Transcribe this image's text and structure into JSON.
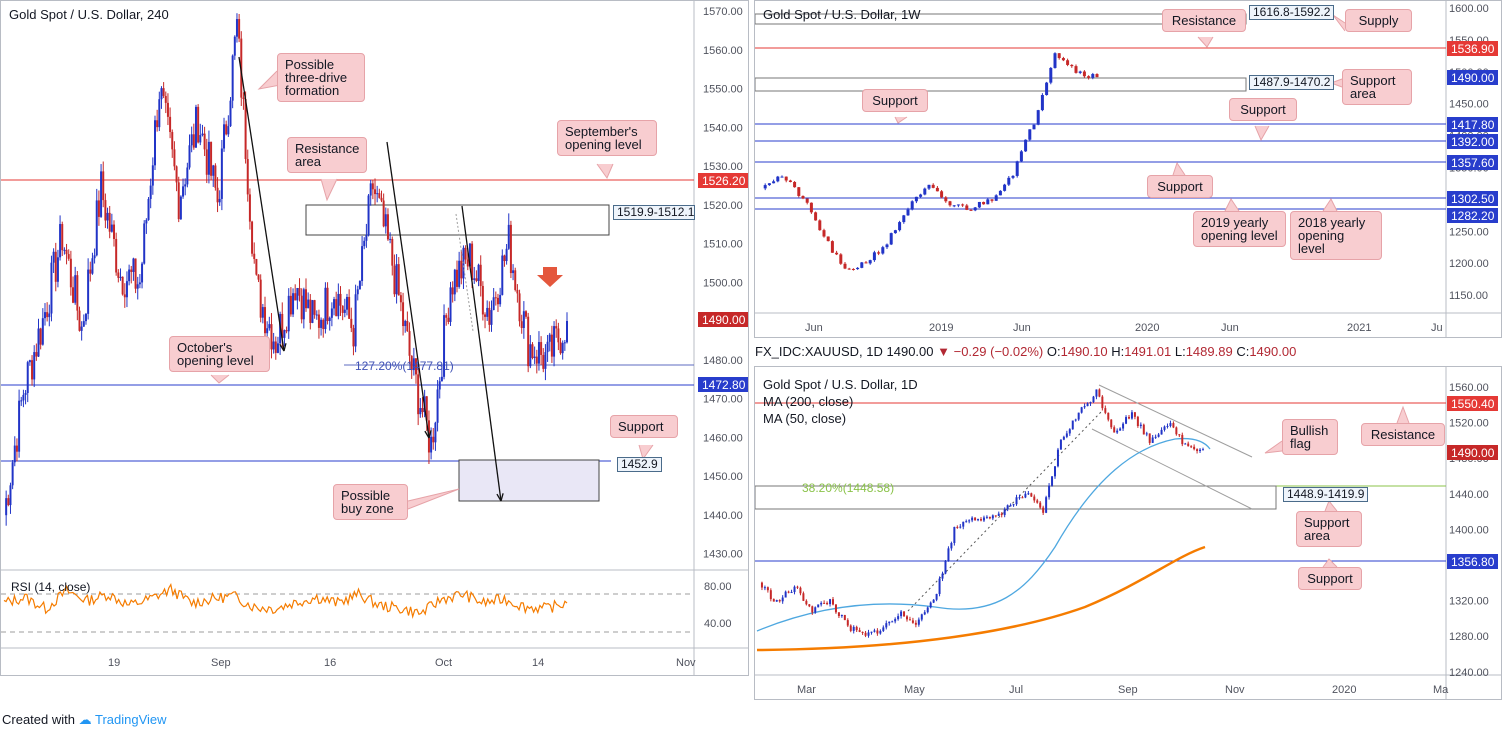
{
  "footer": {
    "created_with": "Created with",
    "brand": "TradingView"
  },
  "colors": {
    "up": "#2134c7",
    "down": "#c62828",
    "resistance": "#e53935",
    "support": "#283dcc",
    "rsi": "#f57c00",
    "ma200": "#f57c00",
    "ma50": "#4fa8e0",
    "fib": "#8bc34a"
  },
  "left_chart": {
    "title": "Gold Spot / U.S. Dollar, 240",
    "price_axis": [
      "1570.00",
      "1560.00",
      "1550.00",
      "1540.00",
      "1530.00",
      "1520.00",
      "1510.00",
      "1500.00",
      "1490.00",
      "1480.00",
      "1470.00",
      "1460.00",
      "1450.00",
      "1440.00",
      "1430.00"
    ],
    "time_axis": [
      "19",
      "Sep",
      "16",
      "Oct",
      "14",
      "Nov"
    ],
    "tags": {
      "resistance": "1526.20",
      "current": "1490.00",
      "support": "1472.80"
    },
    "zone_label": "1519.9-1512.1",
    "support_level": "1452.9",
    "fib_label": "127.20%(1477.81)",
    "callouts": {
      "three_drive": "Possible three-drive formation",
      "resistance_area": "Resistance area",
      "september": "September's opening level",
      "october": "October's opening level",
      "support": "Support",
      "buy_zone": "Possible buy zone"
    },
    "rsi": {
      "label": "RSI (14, close)",
      "axis": [
        "80.00",
        "40.00"
      ]
    }
  },
  "weekly_chart": {
    "title": "Gold Spot / U.S. Dollar, 1W",
    "price_axis": [
      "1600.00",
      "1550.00",
      "1500.00",
      "1450.00",
      "1400.00",
      "1350.00",
      "1300.00",
      "1250.00",
      "1200.00",
      "1150.00"
    ],
    "time_axis": [
      "Jun",
      "2019",
      "Jun",
      "2020",
      "Jun",
      "2021",
      "Ju"
    ],
    "tags": {
      "t1536": "1536.90",
      "t1490": "1490.00",
      "t1417": "1417.80",
      "t1392": "1392.00",
      "t1357": "1357.60",
      "t1302": "1302.50",
      "t1282": "1282.20"
    },
    "zone_supply": "1616.8-1592.2",
    "zone_support": "1487.9-1470.2",
    "callouts": {
      "resistance": "Resistance",
      "supply": "Supply",
      "support_area": "Support area",
      "support1": "Support",
      "support2": "Support",
      "support3": "Support",
      "y2019": "2019 yearly opening level",
      "y2018": "2018 yearly opening level"
    }
  },
  "daily_chart": {
    "symbol_line": {
      "symbol": "FX_IDC:XAUUSD, 1D",
      "last": "1490.00",
      "change": "▼ −0.29 (−0.02%)",
      "o": "O:",
      "o_val": "1490.10",
      "h": "H:",
      "h_val": "1491.01",
      "l": "L:",
      "l_val": "1489.89",
      "c": "C:",
      "c_val": "1490.00"
    },
    "title": "Gold Spot / U.S. Dollar, 1D",
    "ma200": "MA (200, close)",
    "ma50": "MA (50, close)",
    "price_axis": [
      "1560.00",
      "1520.00",
      "1480.00",
      "1440.00",
      "1400.00",
      "1360.00",
      "1320.00",
      "1280.00",
      "1240.00"
    ],
    "time_axis": [
      "Mar",
      "May",
      "Jul",
      "Sep",
      "Nov",
      "2020",
      "Ma"
    ],
    "tags": {
      "resistance": "1550.40",
      "current": "1490.00",
      "support": "1356.80"
    },
    "zone_label": "1448.9-1419.9",
    "fib_label": "38.20%(1448.58)",
    "callouts": {
      "bullish_flag": "Bullish flag",
      "resistance": "Resistance",
      "support_area": "Support area",
      "support": "Support"
    }
  }
}
